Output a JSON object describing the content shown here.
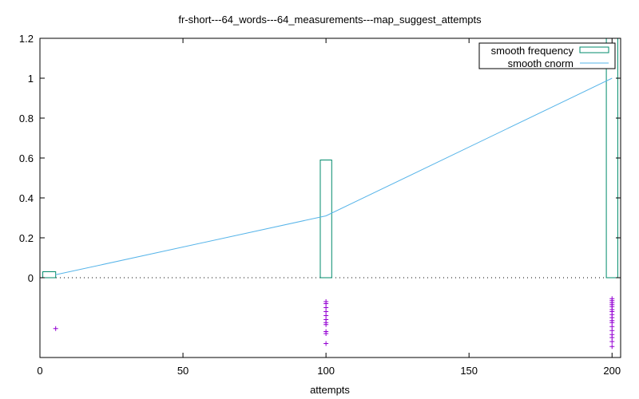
{
  "chart_data": {
    "type": "line",
    "title": "fr-short---64_words---64_measurements---map_suggest_attempts",
    "xlabel": "attempts",
    "ylabel": "",
    "xlim": [
      0,
      203
    ],
    "ylim": [
      -0.4,
      1.2
    ],
    "x_ticks": [
      0,
      50,
      100,
      150,
      200
    ],
    "y_ticks": [
      0,
      0.2,
      0.4,
      0.6,
      0.8,
      1,
      1.2
    ],
    "y_tick_labels": [
      "0",
      "0.2",
      "0.4",
      "0.6",
      "0.8",
      "1",
      "1.2"
    ],
    "zero_line": "dotted",
    "legend_position": "top-right",
    "colors": {
      "frequency": "#008b6b",
      "cnorm": "#56b4e9",
      "points": "#9400d3"
    },
    "series": [
      {
        "name": "smooth frequency",
        "style": "boxes",
        "bars": [
          {
            "x_from": 1,
            "x_to": 5.5,
            "value": 0.03
          },
          {
            "x_from": 98,
            "x_to": 102,
            "value": 0.59
          },
          {
            "x_from": 198,
            "x_to": 202,
            "value": 1.2
          }
        ]
      },
      {
        "name": "smooth cnorm",
        "style": "line",
        "x": [
          5.5,
          100,
          200
        ],
        "y": [
          0.015,
          0.31,
          1.0
        ]
      },
      {
        "name": "",
        "style": "points",
        "points": [
          [
            5.5,
            -0.255
          ],
          [
            100,
            -0.12
          ],
          [
            100,
            -0.13
          ],
          [
            100,
            -0.15
          ],
          [
            100,
            -0.17
          ],
          [
            100,
            -0.19
          ],
          [
            100,
            -0.21
          ],
          [
            100,
            -0.225
          ],
          [
            100,
            -0.235
          ],
          [
            100,
            -0.27
          ],
          [
            100,
            -0.28
          ],
          [
            100,
            -0.33
          ],
          [
            200,
            -0.105
          ],
          [
            200,
            -0.115
          ],
          [
            200,
            -0.125
          ],
          [
            200,
            -0.135
          ],
          [
            200,
            -0.145
          ],
          [
            200,
            -0.16
          ],
          [
            200,
            -0.17
          ],
          [
            200,
            -0.185
          ],
          [
            200,
            -0.2
          ],
          [
            200,
            -0.215
          ],
          [
            200,
            -0.225
          ],
          [
            200,
            -0.245
          ],
          [
            200,
            -0.265
          ],
          [
            200,
            -0.285
          ],
          [
            200,
            -0.3
          ],
          [
            200,
            -0.32
          ],
          [
            200,
            -0.345
          ]
        ]
      }
    ]
  }
}
